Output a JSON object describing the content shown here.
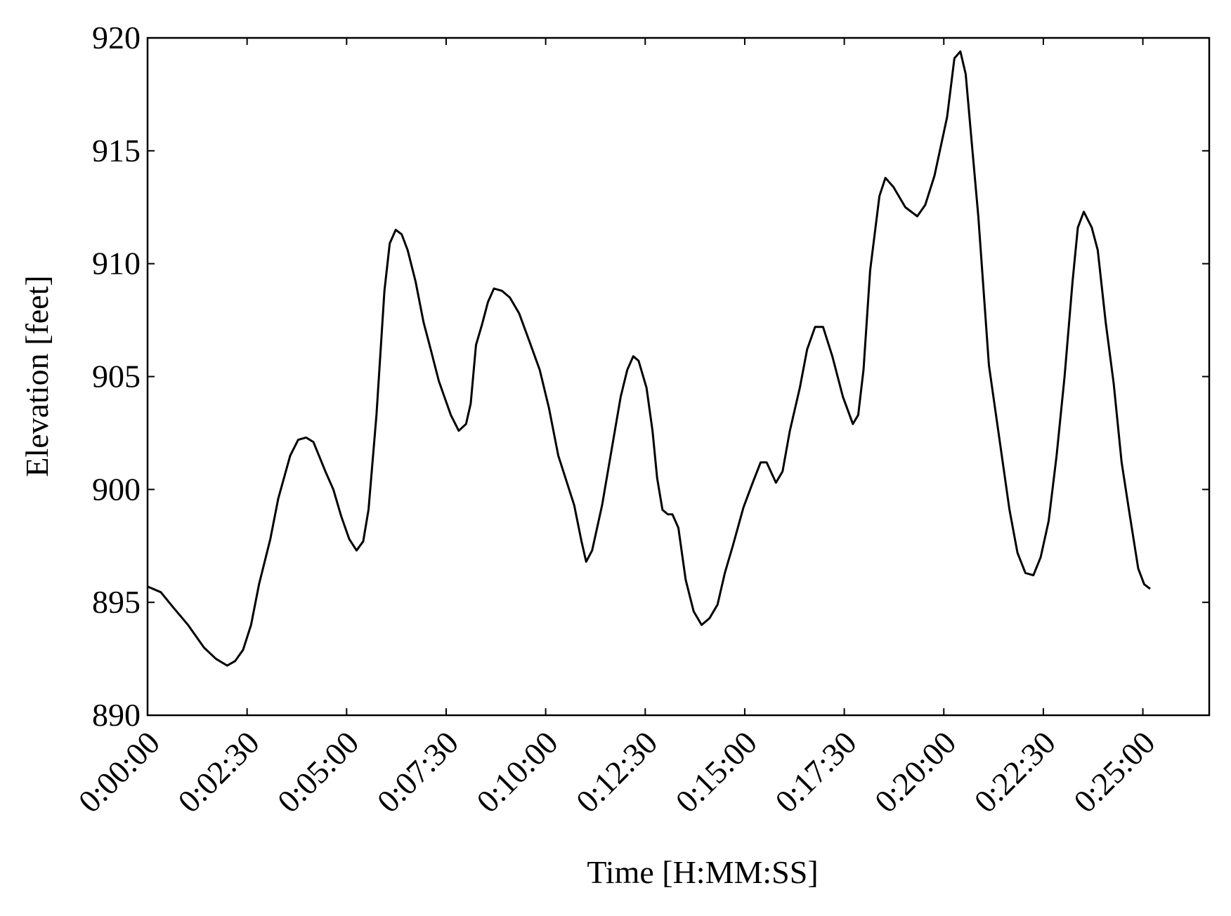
{
  "chart_data": {
    "type": "line",
    "xlabel": "Time [H:MM:SS]",
    "ylabel": "Elevation [feet]",
    "xlim": [
      0,
      1600
    ],
    "ylim": [
      890,
      920
    ],
    "xticks": [
      {
        "value": 0,
        "label": "0:00:00"
      },
      {
        "value": 150,
        "label": "0:02:30"
      },
      {
        "value": 300,
        "label": "0:05:00"
      },
      {
        "value": 450,
        "label": "0:07:30"
      },
      {
        "value": 600,
        "label": "0:10:00"
      },
      {
        "value": 750,
        "label": "0:12:30"
      },
      {
        "value": 900,
        "label": "0:15:00"
      },
      {
        "value": 1050,
        "label": "0:17:30"
      },
      {
        "value": 1200,
        "label": "0:20:00"
      },
      {
        "value": 1350,
        "label": "0:22:30"
      },
      {
        "value": 1500,
        "label": "0:25:00"
      }
    ],
    "yticks": [
      890,
      895,
      900,
      905,
      910,
      915,
      920
    ],
    "series": [
      {
        "color": "#000000",
        "x": [
          0,
          20,
          38,
          61,
          85,
          103,
          120,
          132,
          144,
          156,
          168,
          185,
          197,
          215,
          227,
          239,
          250,
          268,
          280,
          292,
          304,
          315,
          325,
          333,
          345,
          357,
          365,
          374,
          383,
          392,
          404,
          416,
          425,
          439,
          457,
          469,
          480,
          487,
          495,
          504,
          513,
          522,
          534,
          546,
          560,
          575,
          591,
          605,
          619,
          631,
          643,
          654,
          661,
          670,
          685,
          699,
          713,
          723,
          732,
          740,
          752,
          761,
          768,
          776,
          784,
          791,
          800,
          811,
          823,
          835,
          847,
          859,
          870,
          882,
          898,
          912,
          924,
          933,
          947,
          957,
          968,
          983,
          994,
          1006,
          1018,
          1032,
          1048,
          1063,
          1071,
          1079,
          1089,
          1103,
          1112,
          1124,
          1142,
          1160,
          1172,
          1186,
          1205,
          1216,
          1225,
          1233,
          1242,
          1252,
          1268,
          1284,
          1299,
          1311,
          1323,
          1335,
          1346,
          1358,
          1370,
          1382,
          1394,
          1402,
          1411,
          1423,
          1432,
          1444,
          1456,
          1468,
          1479,
          1493,
          1502,
          1511
        ],
        "values": [
          895.7,
          895.45,
          894.8,
          894.0,
          893.0,
          892.5,
          892.2,
          892.4,
          892.9,
          894.0,
          895.8,
          897.8,
          899.6,
          901.5,
          902.2,
          902.3,
          902.1,
          900.8,
          900.0,
          898.8,
          897.8,
          897.3,
          897.7,
          899.1,
          903.3,
          908.8,
          910.9,
          911.5,
          911.3,
          910.6,
          909.2,
          907.4,
          906.4,
          904.8,
          903.3,
          902.6,
          902.9,
          903.8,
          906.4,
          907.3,
          908.3,
          908.9,
          908.8,
          908.5,
          907.8,
          906.6,
          905.3,
          903.6,
          901.5,
          900.4,
          899.3,
          897.7,
          896.8,
          897.3,
          899.3,
          901.7,
          904.1,
          905.3,
          905.9,
          905.7,
          904.5,
          902.6,
          900.5,
          899.1,
          898.9,
          898.9,
          898.3,
          896.0,
          894.6,
          894.0,
          894.3,
          894.9,
          896.3,
          897.5,
          899.2,
          900.3,
          901.2,
          901.2,
          900.3,
          900.8,
          902.6,
          904.5,
          906.2,
          907.2,
          907.2,
          905.9,
          904.1,
          902.9,
          903.3,
          905.3,
          909.7,
          913.0,
          913.8,
          913.4,
          912.5,
          912.1,
          912.6,
          913.9,
          916.5,
          919.1,
          919.4,
          918.4,
          915.4,
          912.1,
          905.5,
          902.2,
          899.1,
          897.2,
          896.3,
          896.2,
          897.0,
          898.6,
          901.5,
          905.0,
          909.2,
          911.6,
          912.3,
          911.6,
          910.6,
          907.4,
          904.7,
          901.2,
          899.1,
          896.5,
          895.8,
          895.6
        ]
      }
    ]
  }
}
